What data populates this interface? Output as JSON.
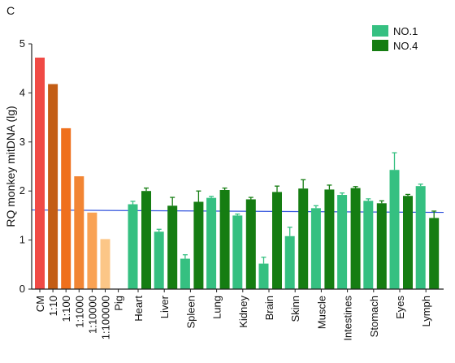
{
  "chart_data": {
    "type": "bar",
    "panel_label": "C",
    "ylabel": "RQ monkey mitDNA (lg)",
    "ylim": [
      0,
      5
    ],
    "yticks": [
      "0",
      "1",
      "2",
      "3",
      "4",
      "5"
    ],
    "reference_line": {
      "y": 1.58,
      "color": "#3355dd"
    },
    "standards": {
      "categories": [
        "CM",
        "1:10",
        "1:100",
        "1:1000",
        "1:10000",
        "1:100000",
        "Pig"
      ],
      "values": [
        4.72,
        4.18,
        3.28,
        2.3,
        1.56,
        1.02,
        0
      ],
      "colors": [
        "#f04a45",
        "#c35d15",
        "#ef701d",
        "#f28533",
        "#f9a254",
        "#fcc687",
        "#ffffff"
      ]
    },
    "tissues": [
      "Heart",
      "Liver",
      "Spleen",
      "Lung",
      "Kidney",
      "Brain",
      "Skinn",
      "Muscle",
      "Intestines",
      "Stomach",
      "Eyes",
      "Lymph"
    ],
    "series": [
      {
        "name": "NO.1",
        "color": "#35c081",
        "values": [
          1.73,
          1.17,
          0.62,
          1.86,
          1.5,
          0.52,
          1.08,
          1.65,
          1.92,
          1.8,
          2.43,
          2.1
        ],
        "errors": [
          0.06,
          0.05,
          0.08,
          0.03,
          0.03,
          0.13,
          0.18,
          0.05,
          0.04,
          0.04,
          0.35,
          0.04
        ]
      },
      {
        "name": "NO.4",
        "color": "#157d12",
        "values": [
          2.0,
          1.7,
          1.78,
          2.02,
          1.83,
          1.98,
          2.05,
          2.03,
          2.06,
          1.75,
          1.9,
          1.45
        ],
        "errors": [
          0.06,
          0.17,
          0.22,
          0.04,
          0.04,
          0.12,
          0.18,
          0.09,
          0.03,
          0.05,
          0.03,
          0.14
        ]
      }
    ],
    "legend": {
      "position": "top-right"
    }
  }
}
